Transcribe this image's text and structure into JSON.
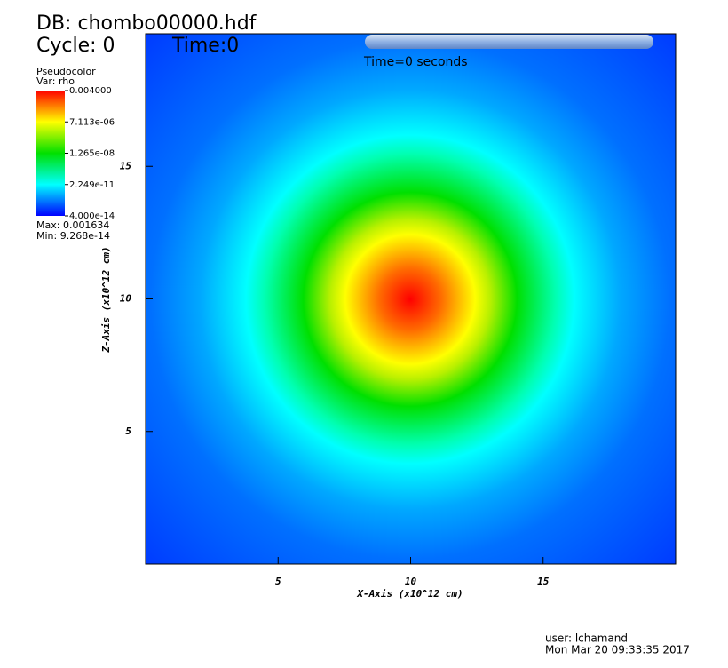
{
  "chart_data": {
    "type": "pseudocolor",
    "db_label": "DB: chombo00000.hdf",
    "cycle_label": "Cycle: 0",
    "time_label": "Time:0",
    "time_annotation": "Time=0 seconds",
    "plot_name": "Pseudocolor",
    "variable": "Var: rho",
    "max_label": "Max: 0.001634",
    "min_label": "Min: 9.268e-14",
    "xlabel": "X-Axis (x10^12 cm)",
    "ylabel": "Z-Axis (x10^12 cm)",
    "xlim": [
      0,
      20
    ],
    "ylim": [
      0,
      20
    ],
    "xticks": [
      5,
      10,
      15
    ],
    "yticks": [
      5,
      10,
      15
    ],
    "colorbar": {
      "log": true,
      "clim": [
        4e-14,
        0.004
      ],
      "ticks": [
        {
          "value": 0.004,
          "label": "0.004000"
        },
        {
          "value": 7.113e-06,
          "label": "7.113e-06"
        },
        {
          "value": 1.265e-08,
          "label": "1.265e-08"
        },
        {
          "value": 2.249e-11,
          "label": "2.249e-11"
        },
        {
          "value": 4e-14,
          "label": "4.000e-14"
        }
      ]
    },
    "user": "user: lchamand",
    "date": "Mon Mar 20 09:33:35 2017"
  }
}
